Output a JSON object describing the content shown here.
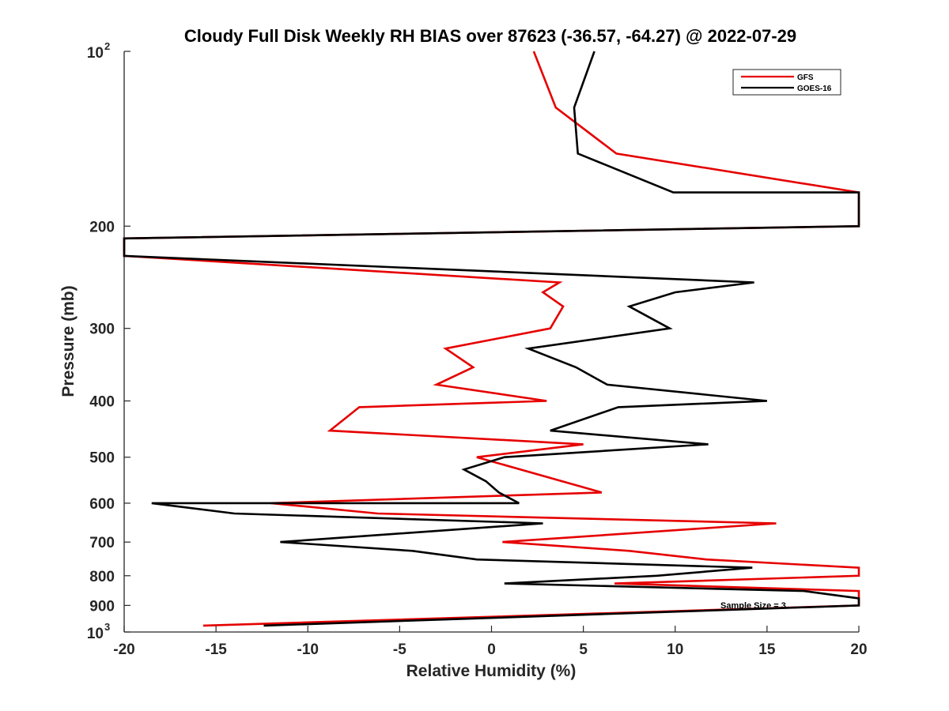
{
  "chart_data": {
    "type": "line",
    "title": "Cloudy Full Disk Weekly RH BIAS over 87623 (-36.57, -64.27) @ 2022-07-29",
    "xlabel": "Relative Humidity (%)",
    "ylabel": "Pressure (mb)",
    "xlim": [
      -20,
      20
    ],
    "ylim": [
      100,
      1000
    ],
    "y_scale": "log",
    "y_reversed": true,
    "x_ticks": [
      "-20",
      "-15",
      "-10",
      "-5",
      "0",
      "5",
      "10",
      "15",
      "20"
    ],
    "y_ticks": [
      {
        "value": 100,
        "base": "10",
        "exp": "2"
      },
      {
        "value": 200,
        "label": "200"
      },
      {
        "value": 300,
        "label": "300"
      },
      {
        "value": 400,
        "label": "400"
      },
      {
        "value": 500,
        "label": "500"
      },
      {
        "value": 600,
        "label": "600"
      },
      {
        "value": 700,
        "label": "700"
      },
      {
        "value": 800,
        "label": "800"
      },
      {
        "value": 900,
        "label": "900"
      },
      {
        "value": 1000,
        "base": "10",
        "exp": "3"
      }
    ],
    "legend_position": "top-right",
    "annotation": "Sample Size = 3",
    "series": [
      {
        "name": "GFS",
        "color": "#e60000",
        "points": [
          [
            2.3,
            100
          ],
          [
            3.5,
            125
          ],
          [
            6.8,
            150
          ],
          [
            20,
            175
          ],
          [
            20,
            175
          ],
          [
            20,
            200
          ],
          [
            -20,
            210
          ],
          [
            -20,
            225
          ],
          [
            3.7,
            250
          ],
          [
            2.8,
            260
          ],
          [
            3.9,
            275
          ],
          [
            3.2,
            300
          ],
          [
            -2.5,
            325
          ],
          [
            -1.0,
            350
          ],
          [
            -3.0,
            375
          ],
          [
            3.0,
            400
          ],
          [
            -7.2,
            410
          ],
          [
            -8.8,
            450
          ],
          [
            5.0,
            475
          ],
          [
            -0.8,
            500
          ],
          [
            6.0,
            575
          ],
          [
            -12.0,
            600
          ],
          [
            -6.2,
            625
          ],
          [
            15.5,
            650
          ],
          [
            0.6,
            700
          ],
          [
            7.5,
            725
          ],
          [
            11.7,
            750
          ],
          [
            20,
            775
          ],
          [
            20,
            800
          ],
          [
            6.7,
            825
          ],
          [
            20,
            850
          ],
          [
            20,
            875
          ],
          [
            20,
            900
          ],
          [
            -15.7,
            975
          ]
        ]
      },
      {
        "name": "GOES-16",
        "color": "#000000",
        "points": [
          [
            5.6,
            100
          ],
          [
            4.5,
            125
          ],
          [
            4.7,
            150
          ],
          [
            9.9,
            175
          ],
          [
            20,
            175
          ],
          [
            20,
            200
          ],
          [
            -20,
            210
          ],
          [
            -20,
            225
          ],
          [
            14.3,
            250
          ],
          [
            10.0,
            260
          ],
          [
            7.5,
            275
          ],
          [
            9.7,
            300
          ],
          [
            2.0,
            325
          ],
          [
            4.6,
            350
          ],
          [
            6.3,
            375
          ],
          [
            15.0,
            400
          ],
          [
            6.9,
            410
          ],
          [
            3.2,
            450
          ],
          [
            11.8,
            475
          ],
          [
            0.7,
            500
          ],
          [
            -1.5,
            525
          ],
          [
            -0.3,
            550
          ],
          [
            0.4,
            575
          ],
          [
            1.5,
            600
          ],
          [
            -18.5,
            600
          ],
          [
            -14.0,
            625
          ],
          [
            2.8,
            650
          ],
          [
            -11.5,
            700
          ],
          [
            -4.3,
            725
          ],
          [
            -0.8,
            750
          ],
          [
            14.2,
            775
          ],
          [
            9.0,
            800
          ],
          [
            0.7,
            825
          ],
          [
            17.0,
            850
          ],
          [
            20,
            875
          ],
          [
            20,
            900
          ],
          [
            -12.4,
            975
          ]
        ]
      }
    ]
  }
}
